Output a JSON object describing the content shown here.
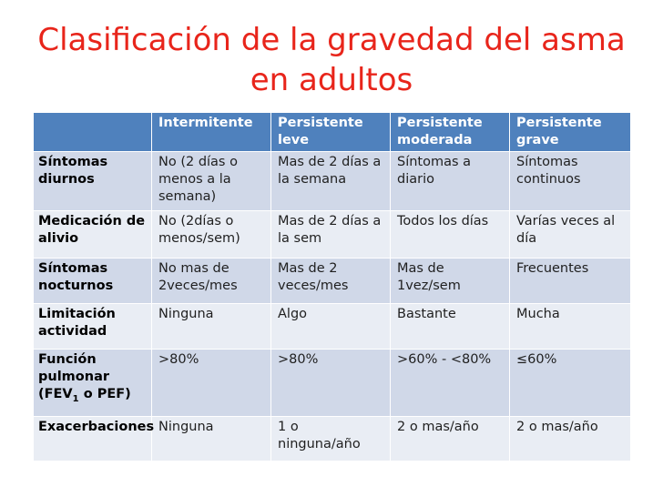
{
  "slide": {
    "title_line1": "Clasificación de la gravedad del asma",
    "title_line2": "en adultos"
  },
  "colors": {
    "title": "#e8251b",
    "header_bg": "#4f81bd",
    "row_odd_bg": "#d0d8e8",
    "row_even_bg": "#e9edf4"
  },
  "table": {
    "headers": [
      "",
      "Intermitente",
      "Persistente leve",
      "Persistente moderada",
      "Persistente grave"
    ],
    "rows": [
      {
        "label": "Síntomas diurnos",
        "cells": [
          "No (2 días o menos a la semana)",
          "Mas de 2 días a la semana",
          "Síntomas a diario",
          "Síntomas continuos"
        ]
      },
      {
        "label": "Medicación de alivio",
        "cells": [
          "No (2días o menos/sem)",
          "Mas de 2 días a la sem",
          "Todos los días",
          "Varías veces al día"
        ]
      },
      {
        "label": "Síntomas nocturnos",
        "cells": [
          "No mas de 2veces/mes",
          "Mas de 2 veces/mes",
          "Mas de 1vez/sem",
          "Frecuentes"
        ]
      },
      {
        "label": "Limitación actividad",
        "cells": [
          "Ninguna",
          "Algo",
          "Bastante",
          "Mucha"
        ]
      },
      {
        "label_main": "Función pulmonar",
        "label_fev_pre": "(FEV",
        "label_fev_sub": "1",
        "label_fev_post": " o PEF)",
        "cells": [
          ">80%",
          ">80%",
          ">60% - <80%",
          "≤60%"
        ]
      },
      {
        "label": "Exacerbaciones",
        "cells": [
          "Ninguna",
          "1 o ninguna/año",
          "2 o mas/año",
          "2 o mas/año"
        ]
      }
    ]
  }
}
